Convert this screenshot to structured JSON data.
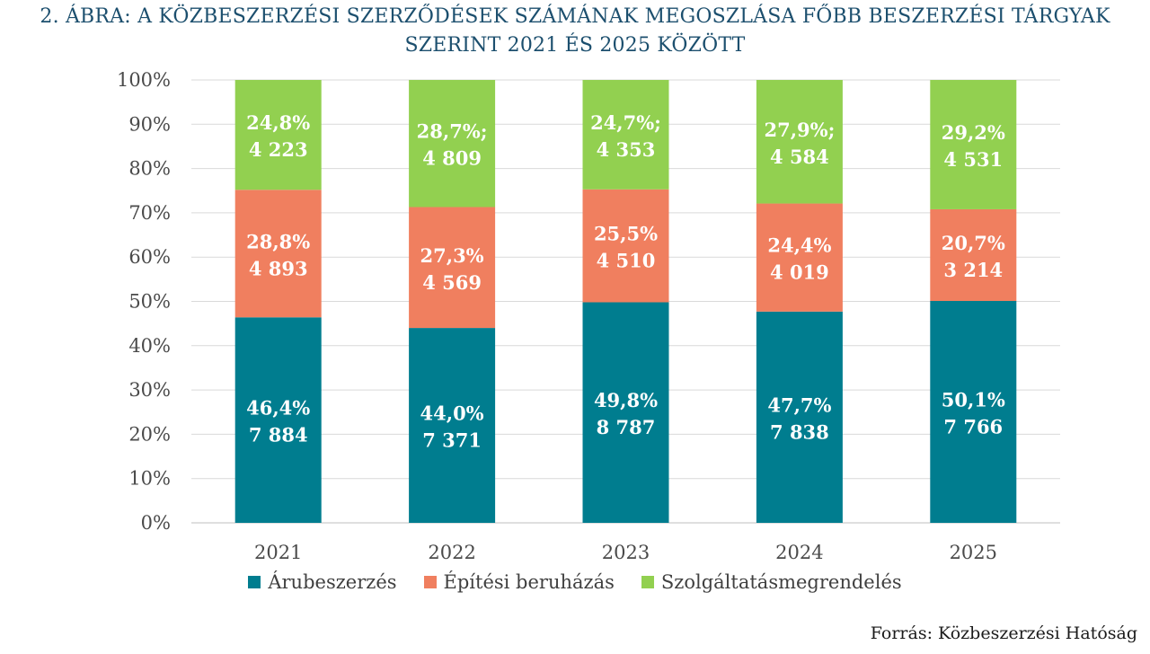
{
  "title_line1": "2. ÁBRA: A KÖZBESZERZÉSI SZERZŐDÉSEK SZÁMÁNAK MEGOSZLÁSA FŐBB BESZERZÉSI TÁRGYAK",
  "title_line2": "SZERINT 2021 ÉS 2025 KÖZÖTT",
  "source": "Forrás: Közbeszerzési Hatóság",
  "chart_data": {
    "type": "bar",
    "stacked": true,
    "categories": [
      "2021",
      "2022",
      "2023",
      "2024",
      "2025"
    ],
    "ylim": [
      0,
      100
    ],
    "yticks": [
      0,
      10,
      20,
      30,
      40,
      50,
      60,
      70,
      80,
      90,
      100
    ],
    "ytick_labels": [
      "0%",
      "10%",
      "20%",
      "30%",
      "40%",
      "50%",
      "60%",
      "70%",
      "80%",
      "90%",
      "100%"
    ],
    "grid": true,
    "legend_position": "bottom",
    "series": [
      {
        "name": "Árubeszerzés",
        "color": "#007d8f",
        "values": [
          46.4,
          44.0,
          49.8,
          47.7,
          50.1
        ],
        "counts": [
          "7 884",
          "7 371",
          "8 787",
          "7 838",
          "7 766"
        ],
        "labels": [
          "46,4%",
          "44,0%",
          "49,8%",
          "47,7%",
          "50,1%"
        ]
      },
      {
        "name": "Építési beruházás",
        "color": "#f07f5f",
        "values": [
          28.8,
          27.3,
          25.5,
          24.4,
          20.7
        ],
        "counts": [
          "4 893",
          "4 569",
          "4 510",
          "4 019",
          "3 214"
        ],
        "labels": [
          "28,8%",
          "27,3%",
          "25,5%",
          "24,4%",
          "20,7%"
        ]
      },
      {
        "name": "Szolgáltatásmegrendelés",
        "color": "#92d050",
        "values": [
          24.8,
          28.7,
          24.7,
          27.9,
          29.2
        ],
        "counts": [
          "4 223",
          "4 809",
          "4 353",
          "4 584",
          "4 531"
        ],
        "labels": [
          "24,8%",
          "28,7%;",
          "24,7%;",
          "27,9%;",
          "29,2%"
        ]
      }
    ]
  }
}
